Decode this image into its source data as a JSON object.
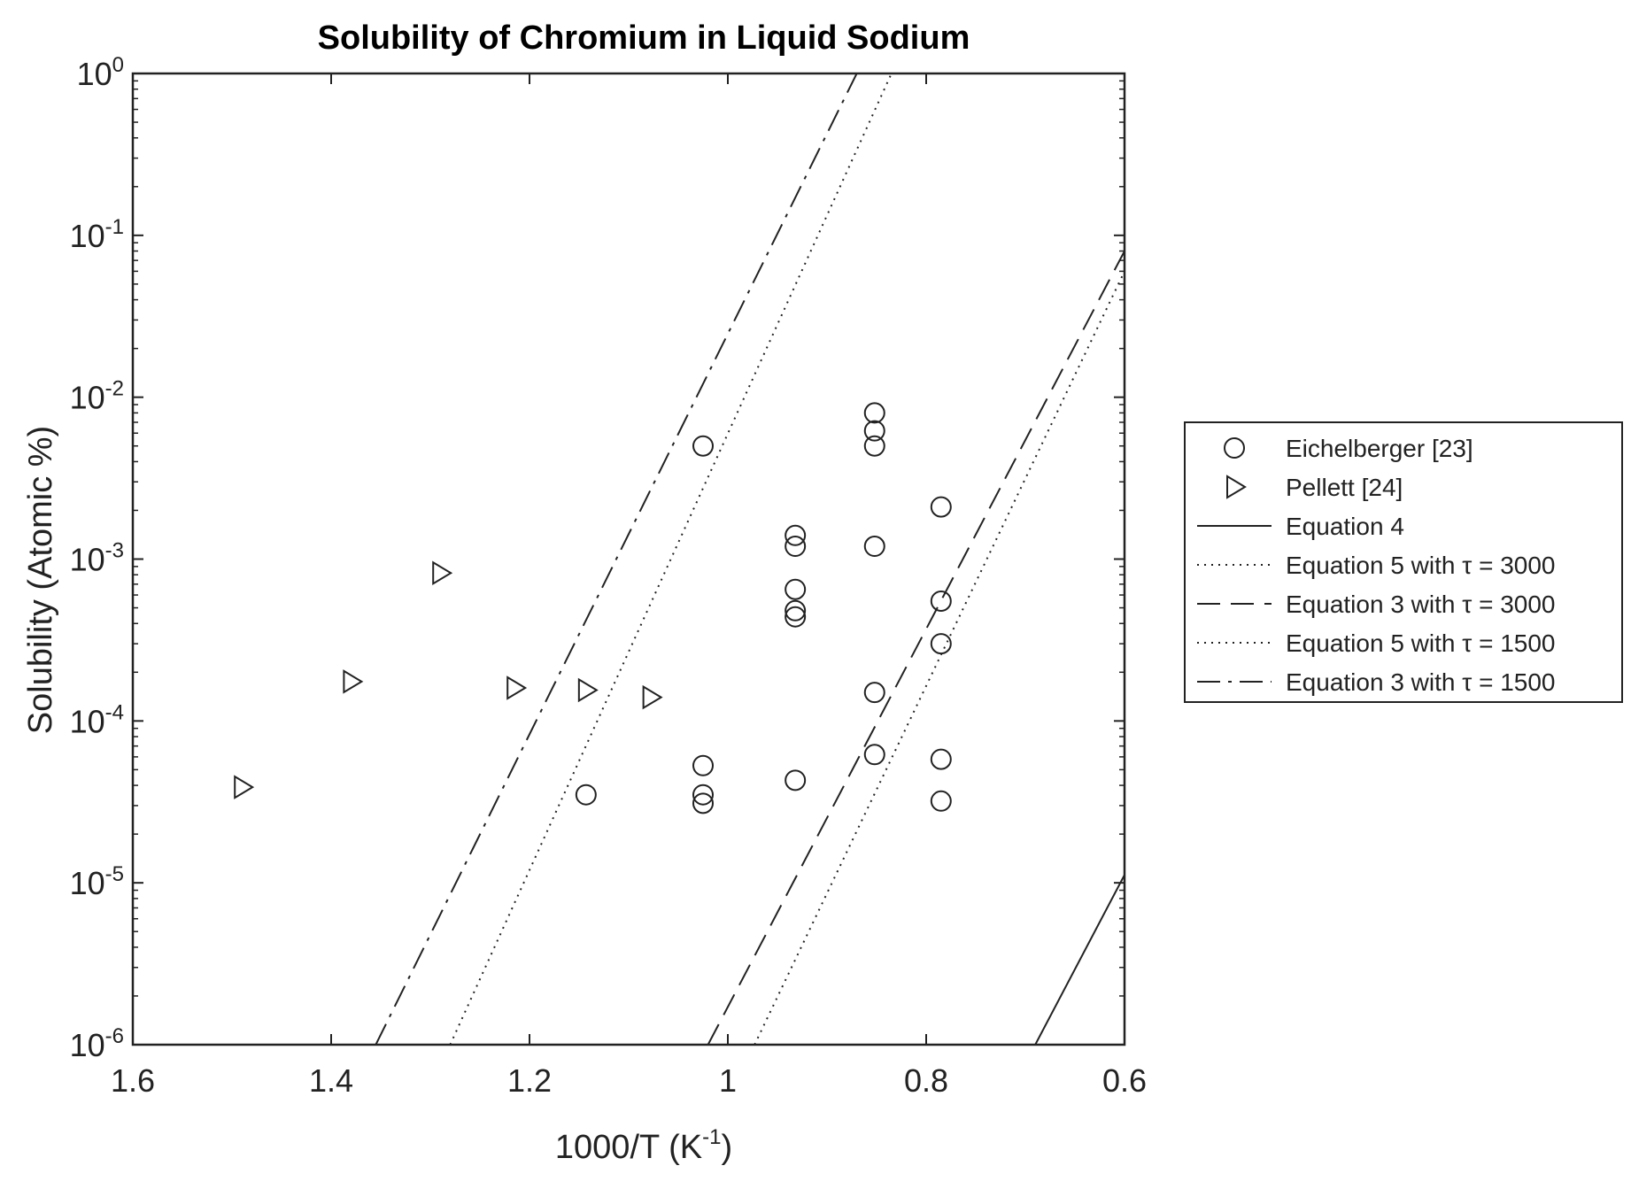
{
  "chart_data": {
    "type": "scatter",
    "title": "Solubility of Chromium in Liquid Sodium",
    "xlabel_base": "1000/T (K",
    "xlabel_sup": "-1",
    "xlabel_end": ")",
    "ylabel": "Solubility (Atomic %)",
    "xlim": [
      1.6,
      0.6
    ],
    "x_reversed": true,
    "ylim": [
      1e-06,
      1
    ],
    "y_scale": "log",
    "grid": false,
    "legend_position": "outside-right",
    "x_ticks": [
      {
        "value": 1.6,
        "label": "1.6"
      },
      {
        "value": 1.4,
        "label": "1.4"
      },
      {
        "value": 1.2,
        "label": "1.2"
      },
      {
        "value": 1.0,
        "label": "1"
      },
      {
        "value": 0.8,
        "label": "0.8"
      },
      {
        "value": 0.6,
        "label": "0.6"
      }
    ],
    "y_ticks": [
      {
        "exp": 0,
        "base": "10",
        "sup": "0"
      },
      {
        "exp": -1,
        "base": "10",
        "sup": "-1"
      },
      {
        "exp": -2,
        "base": "10",
        "sup": "-2"
      },
      {
        "exp": -3,
        "base": "10",
        "sup": "-3"
      },
      {
        "exp": -4,
        "base": "10",
        "sup": "-4"
      },
      {
        "exp": -5,
        "base": "10",
        "sup": "-5"
      },
      {
        "exp": -6,
        "base": "10",
        "sup": "-6"
      }
    ],
    "series": [
      {
        "name": "Eichelberger [23]",
        "kind": "scatter",
        "marker": "circle",
        "points": [
          [
            1.143,
            3.5e-05
          ],
          [
            1.025,
            0.005
          ],
          [
            1.025,
            5.3e-05
          ],
          [
            1.025,
            3.5e-05
          ],
          [
            1.025,
            3.1e-05
          ],
          [
            0.932,
            0.0014
          ],
          [
            0.932,
            0.0012
          ],
          [
            0.932,
            0.00065
          ],
          [
            0.932,
            0.00048
          ],
          [
            0.932,
            0.00044
          ],
          [
            0.932,
            4.3e-05
          ],
          [
            0.852,
            0.008
          ],
          [
            0.852,
            0.0062
          ],
          [
            0.852,
            0.005
          ],
          [
            0.852,
            0.0012
          ],
          [
            0.852,
            0.00015
          ],
          [
            0.852,
            6.2e-05
          ],
          [
            0.785,
            0.0021
          ],
          [
            0.785,
            0.00055
          ],
          [
            0.785,
            0.0003
          ],
          [
            0.785,
            5.8e-05
          ],
          [
            0.785,
            3.2e-05
          ]
        ]
      },
      {
        "name": "Pellett [24]",
        "kind": "scatter",
        "marker": "triangle-right",
        "points": [
          [
            1.49,
            3.9e-05
          ],
          [
            1.38,
            0.000175
          ],
          [
            1.29,
            0.00082
          ],
          [
            1.215,
            0.00016
          ],
          [
            1.143,
            0.000155
          ],
          [
            1.078,
            0.00014
          ]
        ]
      },
      {
        "name": "Equation 4",
        "kind": "line",
        "dash": "solid",
        "points": [
          [
            0.69,
            1e-06
          ],
          [
            0.6,
            1.12e-05
          ]
        ]
      },
      {
        "name": "Equation 5 with τ = 3000",
        "kind": "line",
        "dash": "dotted",
        "points": [
          [
            0.973,
            1e-06
          ],
          [
            0.6,
            0.06
          ]
        ]
      },
      {
        "name": "Equation 3 with τ = 3000",
        "kind": "line",
        "dash": "dashed",
        "points": [
          [
            1.02,
            1e-06
          ],
          [
            0.6,
            0.08
          ]
        ]
      },
      {
        "name": "Equation 5 with τ = 1500",
        "kind": "line",
        "dash": "dotted",
        "points": [
          [
            1.28,
            1e-06
          ],
          [
            0.835,
            1.0
          ]
        ]
      },
      {
        "name": "Equation 3 with τ = 1500",
        "kind": "line",
        "dash": "dashdot",
        "points": [
          [
            1.355,
            1e-06
          ],
          [
            0.87,
            1.0
          ]
        ]
      }
    ]
  }
}
